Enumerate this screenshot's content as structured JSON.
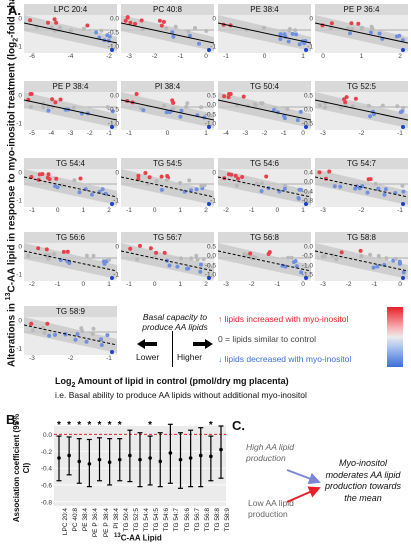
{
  "panels": {
    "a": "A.",
    "b": "B.",
    "c": "C."
  },
  "panel_a": {
    "ylabel_parts": [
      "Alterations in ",
      "13",
      "C-AA lipid in response to myo-inositol treatment  (log",
      "2",
      "-fold change)"
    ],
    "xlabel_line1_parts": [
      "Log",
      "2",
      " Amount of lipid in control (pmol/dry mg placenta)"
    ],
    "xlabel_line2": "i.e. Basal ability to produce AA lipids without additional myo-inositol",
    "legend": {
      "basal_title_line1": "Basal capacity to",
      "basal_title_line2": "produce AA lipids",
      "lower": "Lower",
      "higher": "Higher",
      "up": "↑ lipids increased with myo-inositol",
      "zero": "0 = lipids similar to control",
      "down": "↓ lipids decreased with myo-inositol",
      "colors": {
        "up": "#e8202a",
        "zero": "#888888",
        "down": "#3a6fd8"
      }
    },
    "mini_charts": [
      {
        "title": "LPC 20:4",
        "xticks": [
          "-6",
          "-4",
          "-2"
        ],
        "yticks": [
          "0",
          "-1"
        ],
        "line": "solid"
      },
      {
        "title": "PC 40:8",
        "xticks": [
          "-3",
          "-2",
          "-1",
          "0"
        ],
        "yticks": [
          "0.0",
          "-0.5",
          "-1.0"
        ],
        "line": "solid"
      },
      {
        "title": "PE 38:4",
        "xticks": [
          "-1",
          "0",
          "1"
        ],
        "yticks": [
          "0",
          "-1"
        ],
        "line": "solid"
      },
      {
        "title": "PE P 36:4",
        "xticks": [
          "0",
          "1",
          "2"
        ],
        "yticks": [
          "0",
          "-1"
        ],
        "line": "solid"
      },
      {
        "title": "PE P 38:4",
        "xticks": [
          "-5",
          "-4",
          "-3",
          "-2",
          "-1"
        ],
        "yticks": [
          "0",
          "-1"
        ],
        "line": "solid"
      },
      {
        "title": "PI 38:4",
        "xticks": [
          "-1",
          "0",
          "1"
        ],
        "yticks": [
          "0.0",
          "-0.5",
          "-1.0"
        ],
        "line": "solid"
      },
      {
        "title": "TG 50:4",
        "xticks": [
          "-4",
          "-3",
          "-2",
          "-1",
          "0"
        ],
        "yticks": [
          "0.5",
          "0.0",
          "-0.5",
          "-1.0"
        ],
        "line": "solid"
      },
      {
        "title": "TG 52:5",
        "xticks": [
          "-3",
          "-2",
          "-1"
        ],
        "yticks": [
          "0.5",
          "0.0",
          "-0.5"
        ],
        "line": "solid"
      },
      {
        "title": "TG 54:4",
        "xticks": [
          "-1",
          "0",
          "1",
          "2"
        ],
        "yticks": [
          "0",
          "-1"
        ],
        "line": "dashed"
      },
      {
        "title": "TG 54:5",
        "xticks": [
          "-1",
          "0",
          "1",
          "2"
        ],
        "yticks": [
          "0",
          "-1"
        ],
        "line": "dashed"
      },
      {
        "title": "TG 54:6",
        "xticks": [
          "-2",
          "-1",
          "0",
          "1"
        ],
        "yticks": [
          "0",
          "-1"
        ],
        "line": "dashed"
      },
      {
        "title": "TG 54:7",
        "xticks": [
          "-3",
          "-2",
          "-1"
        ],
        "yticks": [
          "0.4",
          "0.0",
          "-0.4",
          "-0.8"
        ],
        "line": "dashed"
      },
      {
        "title": "TG 56:6",
        "xticks": [
          "-2",
          "-1",
          "0",
          "1"
        ],
        "yticks": [
          "0",
          "-1"
        ],
        "line": "dashed"
      },
      {
        "title": "TG 56:7",
        "xticks": [
          "-1",
          "0",
          "1",
          "2"
        ],
        "yticks": [
          "0",
          "-1"
        ],
        "line": "dashed"
      },
      {
        "title": "TG 56:8",
        "xticks": [
          "-3",
          "-2",
          "-1",
          "0"
        ],
        "yticks": [
          "0.5",
          "0.0",
          "-0.5",
          "-1.0"
        ],
        "line": "dashed"
      },
      {
        "title": "TG 58:8",
        "xticks": [
          "-3",
          "-2",
          "-1",
          "0"
        ],
        "yticks": [
          "0.0",
          "-0.5",
          "-1.0",
          "-1.5"
        ],
        "line": "dashed"
      },
      {
        "title": "TG 58:9",
        "xticks": [
          "-3",
          "-2",
          "-1"
        ],
        "yticks": [
          "0",
          "-1"
        ],
        "line": "dashed"
      }
    ]
  },
  "chart_data": {
    "type": "scatter",
    "title": "",
    "ylabel": "Association coefficient (95% CI)",
    "xlabel_parts": [
      "13",
      "C-AA Lipid"
    ],
    "categories": [
      "LPC 20:4",
      "PC 40:8",
      "PE 38:4",
      "PE P 36:4",
      "PE P 38:4",
      "PI 38:4",
      "TG 50:4",
      "TG 52:5",
      "TG 54:4",
      "TG 54:5",
      "TG 54:6",
      "TG 54:7",
      "TG 56:6",
      "TG 56:7",
      "TG 56:8",
      "TG 58:8",
      "TG 58:9"
    ],
    "values": [
      -0.28,
      -0.25,
      -0.32,
      -0.35,
      -0.3,
      -0.33,
      -0.3,
      -0.25,
      -0.3,
      -0.28,
      -0.32,
      -0.22,
      -0.3,
      -0.28,
      -0.25,
      -0.26,
      -0.18
    ],
    "ci_low": [
      -0.55,
      -0.48,
      -0.58,
      -0.62,
      -0.55,
      -0.6,
      -0.55,
      -0.56,
      -0.62,
      -0.6,
      -0.62,
      -0.58,
      -0.64,
      -0.62,
      -0.62,
      -0.55,
      -0.52
    ],
    "ci_high": [
      -0.02,
      -0.03,
      -0.05,
      -0.06,
      -0.04,
      -0.05,
      -0.05,
      0.05,
      0.02,
      -0.02,
      0.02,
      0.12,
      0.02,
      0.05,
      0.08,
      -0.02,
      0.1
    ],
    "significant": [
      true,
      true,
      true,
      true,
      true,
      true,
      true,
      false,
      false,
      true,
      false,
      false,
      false,
      false,
      false,
      true,
      false
    ],
    "star": "*",
    "yticks": [
      "0.0",
      "-0.2",
      "-0.4",
      "-0.6",
      "-0.8"
    ],
    "ylim": [
      -0.85,
      0.1
    ]
  },
  "panel_c": {
    "high": "High AA lipid production",
    "low": "Low AA lipid production",
    "result": "Myo-inositol moderates AA lipid production towards the mean",
    "colors": {
      "high": "#7b86d8",
      "low": "#e8202a"
    }
  }
}
